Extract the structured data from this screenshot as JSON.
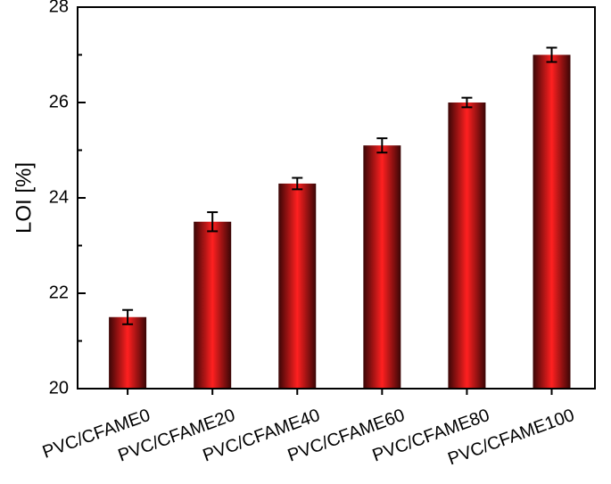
{
  "chart_data": {
    "type": "bar",
    "ylabel": "LOI [%]",
    "categories": [
      "PVC/CFAME0",
      "PVC/CFAME20",
      "PVC/CFAME40",
      "PVC/CFAME60",
      "PVC/CFAME80",
      "PVC/CFAME100"
    ],
    "values": [
      21.5,
      23.5,
      24.3,
      25.1,
      26.0,
      27.0
    ],
    "errors": [
      0.15,
      0.2,
      0.12,
      0.15,
      0.1,
      0.15
    ],
    "color": "#ff2020",
    "ylim": [
      20,
      28
    ],
    "yticks": [
      20,
      22,
      24,
      26,
      28
    ],
    "grid": false
  }
}
